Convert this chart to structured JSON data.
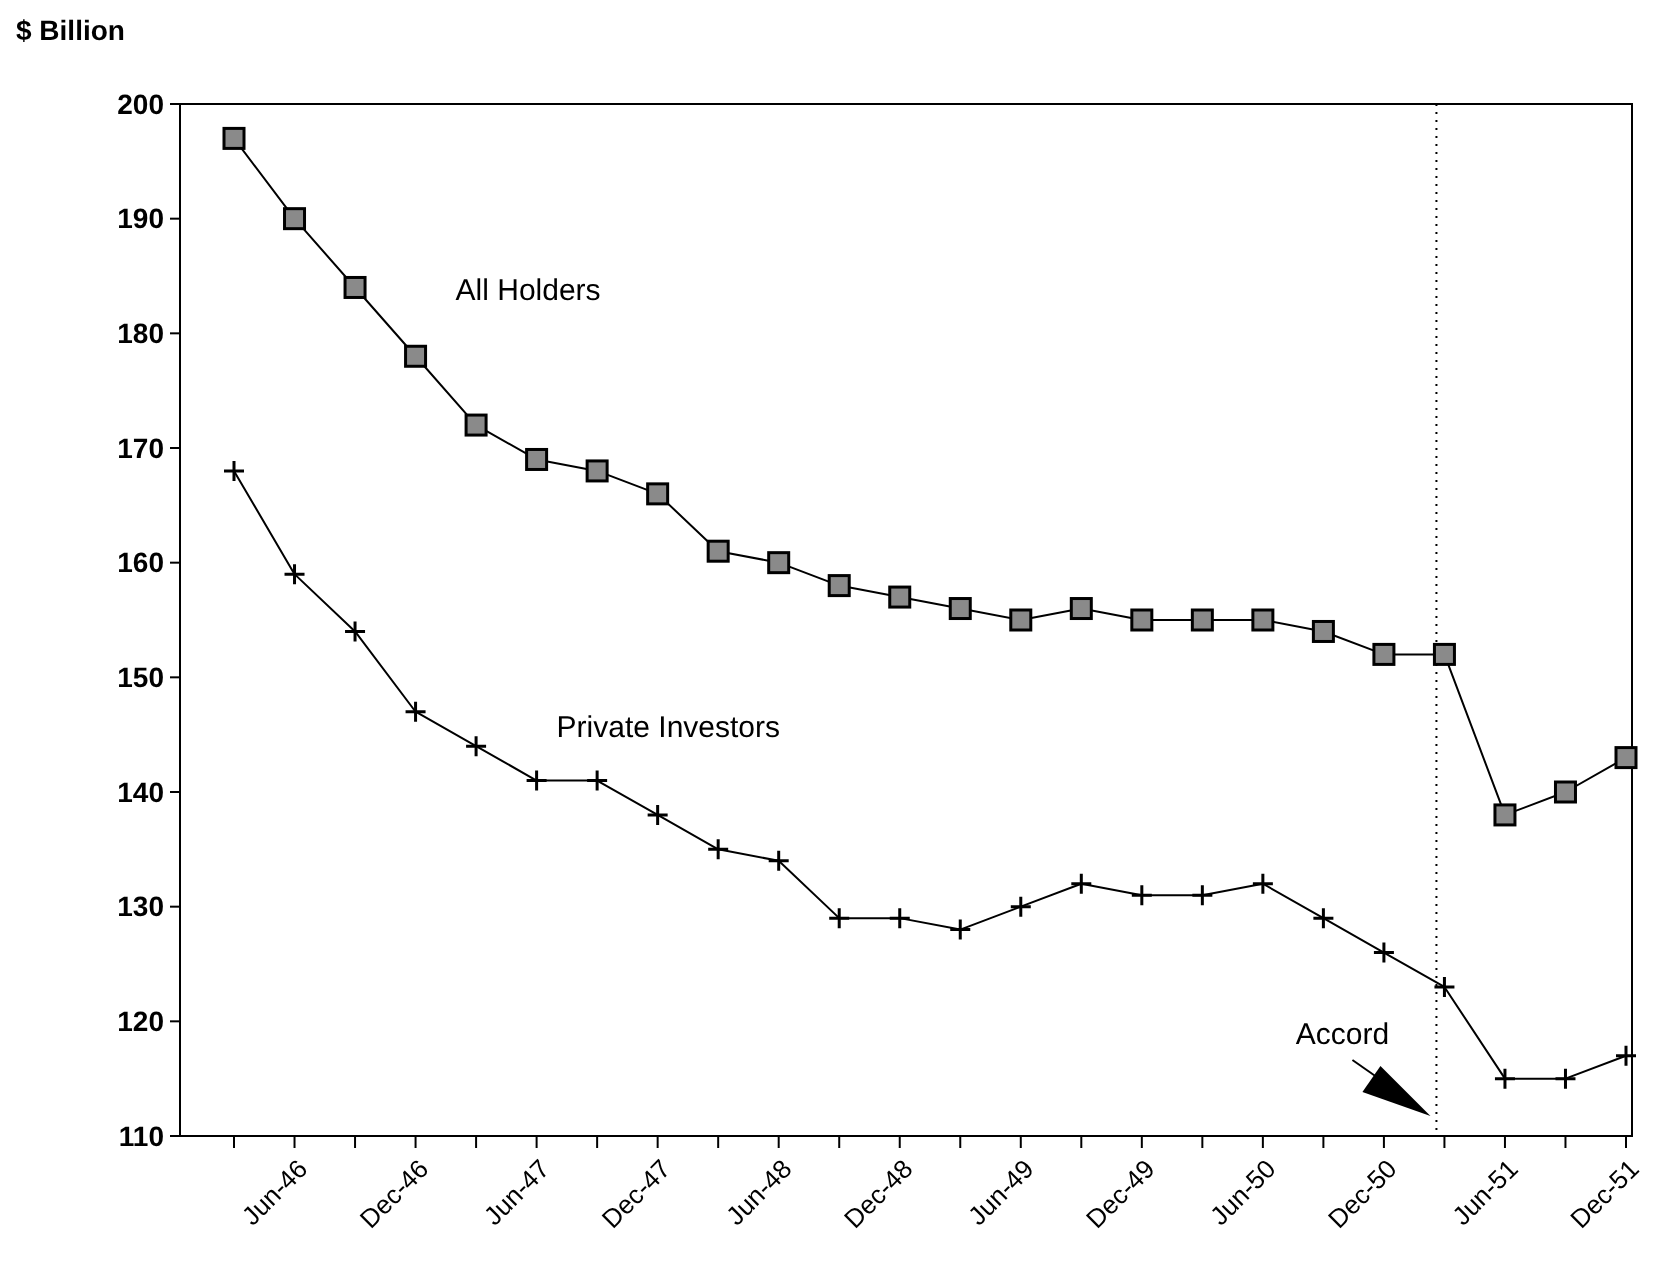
{
  "chart_data": {
    "type": "line",
    "ylabel": "$ Billion",
    "categories": [
      null,
      "Jun-46",
      null,
      "Dec-46",
      null,
      "Jun-47",
      null,
      "Dec-47",
      null,
      "Jun-48",
      null,
      "Dec-48",
      null,
      "Jun-49",
      null,
      "Dec-49",
      null,
      "Jun-50",
      null,
      "Dec-50",
      null,
      "Jun-51",
      null,
      "Dec-51"
    ],
    "series": [
      {
        "name": "All Holders",
        "color": "#000000",
        "marker": "square",
        "values": [
          197,
          190,
          184,
          178,
          172,
          169,
          168,
          166,
          161,
          160,
          158,
          157,
          156,
          155,
          156,
          155,
          155,
          155,
          154,
          152,
          152,
          138,
          140,
          143
        ]
      },
      {
        "name": "Private Investors",
        "color": "#000000",
        "marker": "cross",
        "values": [
          168,
          159,
          154,
          147,
          144,
          141,
          141,
          138,
          135,
          134,
          129,
          129,
          128,
          130,
          132,
          131,
          131,
          132,
          129,
          126,
          123,
          115,
          115,
          117
        ]
      }
    ],
    "ylim": [
      110,
      200
    ],
    "yticks": [
      110,
      120,
      130,
      140,
      150,
      160,
      170,
      180,
      190,
      200
    ],
    "annotations": [
      "Accord"
    ],
    "grid": false,
    "legend": false,
    "line_style": "solid"
  }
}
